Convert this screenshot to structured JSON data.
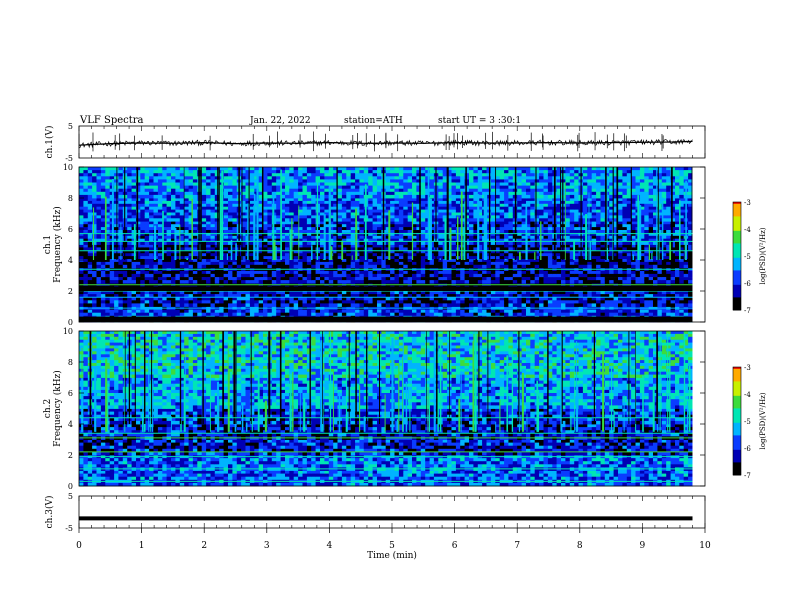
{
  "header": {
    "title": "VLF  Spectra",
    "date": "Jan.  22,  2022",
    "station": "station=ATH",
    "start_ut": "start  UT  =   3  :30:1"
  },
  "chart_data": [
    {
      "type": "line",
      "name": "ch1-waveform",
      "ylabel": "ch.1(V)",
      "ylim": [
        -5,
        5
      ],
      "yticks": [
        "5",
        "-5"
      ],
      "x": [
        0.0,
        0.5,
        1.0,
        1.5,
        2.0,
        2.5,
        3.0,
        3.5,
        4.0,
        4.5,
        5.0,
        5.5,
        6.0,
        6.5,
        7.0,
        7.5,
        8.0,
        8.5,
        9.0,
        9.5,
        9.8
      ],
      "y": [
        -1.0,
        -0.5,
        -0.3,
        -0.4,
        -0.2,
        -0.5,
        -0.3,
        -0.4,
        -0.2,
        -0.4,
        -0.3,
        -0.4,
        -0.2,
        -0.3,
        -0.3,
        -0.2,
        -0.3,
        -0.2,
        -0.1,
        0.0,
        0.2
      ]
    },
    {
      "type": "heatmap",
      "name": "ch1-spectrogram",
      "ylabel_line1": "ch.1",
      "ylabel_line2": "Frequency  (kHz)",
      "ylim": [
        0,
        10
      ],
      "yticks": [
        "0",
        "2",
        "4",
        "6",
        "8",
        "10"
      ],
      "colorbar_label": "log(PSD)(V²/Hz)",
      "colorbar_ticks": [
        "-3",
        "-4",
        "-5",
        "-6",
        "-7"
      ],
      "clim": [
        -7,
        -3
      ],
      "bands": [
        {
          "f_low": 0.0,
          "f_high": 1.0,
          "level": -5.8
        },
        {
          "f_low": 1.0,
          "f_high": 2.0,
          "level": -6.2
        },
        {
          "f_low": 2.0,
          "f_high": 2.5,
          "level": -6.9
        },
        {
          "f_low": 2.5,
          "f_high": 3.5,
          "level": -6.3
        },
        {
          "f_low": 3.5,
          "f_high": 5.0,
          "level": -6.4
        },
        {
          "f_low": 5.0,
          "f_high": 6.5,
          "level": -5.9
        },
        {
          "f_low": 6.5,
          "f_high": 8.0,
          "level": -5.7
        },
        {
          "f_low": 8.0,
          "f_high": 10.0,
          "level": -5.4
        }
      ]
    },
    {
      "type": "heatmap",
      "name": "ch2-spectrogram",
      "ylabel_line1": "ch.2",
      "ylabel_line2": "Frequency  (kHz)",
      "ylim": [
        0,
        10
      ],
      "yticks": [
        "0",
        "2",
        "4",
        "6",
        "8",
        "10"
      ],
      "colorbar_label": "log(PSD)(V²/Hz)",
      "colorbar_ticks": [
        "-3",
        "-4",
        "-5",
        "-6",
        "-7"
      ],
      "clim": [
        -7,
        -3
      ],
      "bands": [
        {
          "f_low": 0.0,
          "f_high": 1.0,
          "level": -5.7
        },
        {
          "f_low": 1.0,
          "f_high": 2.0,
          "level": -5.6
        },
        {
          "f_low": 2.0,
          "f_high": 3.0,
          "level": -6.1
        },
        {
          "f_low": 3.0,
          "f_high": 4.0,
          "level": -6.2
        },
        {
          "f_low": 4.0,
          "f_high": 5.0,
          "level": -5.9
        },
        {
          "f_low": 5.0,
          "f_high": 7.0,
          "level": -5.3
        },
        {
          "f_low": 7.0,
          "f_high": 10.0,
          "level": -5.0
        }
      ]
    },
    {
      "type": "line",
      "name": "ch3-waveform",
      "ylabel": "ch.3(V)",
      "ylim": [
        -5,
        5
      ],
      "yticks": [
        "5",
        "-5"
      ],
      "xlabel": "Time  (min)",
      "xlim": [
        0,
        10
      ],
      "xticks": [
        "0",
        "1",
        "2",
        "3",
        "4",
        "5",
        "6",
        "7",
        "8",
        "9",
        "10"
      ],
      "x": [
        0.0,
        9.8
      ],
      "y": [
        -2.0,
        -2.0
      ]
    }
  ],
  "colors": {
    "colormap": [
      "#000000",
      "#0000b4",
      "#0a3cff",
      "#00b4ff",
      "#00e6b4",
      "#3cdc3c",
      "#c8f000",
      "#ffaa00",
      "#e60000",
      "#ffffff"
    ]
  }
}
